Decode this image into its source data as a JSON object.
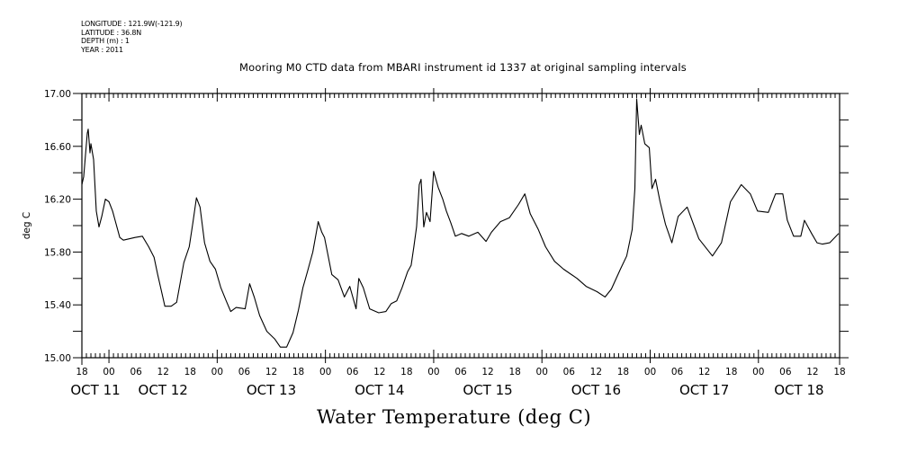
{
  "header": {
    "meta_lines": [
      "LONGITUDE : 121.9W(-121.9)",
      "LATITUDE : 36.8N",
      "DEPTH (m) : 1",
      "YEAR : 2011"
    ]
  },
  "chart_data": {
    "type": "line",
    "title": "Mooring M0 CTD data from MBARI instrument id 1337 at original sampling intervals",
    "caption": "Water Temperature (deg C)",
    "ylabel": "deg C",
    "xlabel": "",
    "x_units": "hours since OCT 11 18:00 (2011)",
    "xlim": [
      0,
      168
    ],
    "ylim": [
      15.0,
      17.0
    ],
    "grid": false,
    "y_ticks": [
      15.0,
      15.2,
      15.4,
      15.6,
      15.8,
      16.0,
      16.2,
      16.4,
      16.6,
      16.8,
      17.0
    ],
    "y_tick_labels": [
      "15.00",
      "",
      "15.40",
      "",
      "15.80",
      "",
      "16.20",
      "",
      "16.60",
      "",
      "17.00"
    ],
    "x_hour_labels": [
      "18",
      "00",
      "06",
      "12",
      "18",
      "00",
      "06",
      "12",
      "18",
      "00",
      "06",
      "12",
      "18",
      "00",
      "06",
      "12",
      "18",
      "00",
      "06",
      "12",
      "18",
      "00",
      "06",
      "12",
      "18",
      "00",
      "06",
      "12",
      "18"
    ],
    "day_labels": [
      {
        "label": "OCT 11",
        "center_hour": 3
      },
      {
        "label": "OCT 12",
        "center_hour": 18
      },
      {
        "label": "OCT 13",
        "center_hour": 42
      },
      {
        "label": "OCT 14",
        "center_hour": 66
      },
      {
        "label": "OCT 15",
        "center_hour": 90
      },
      {
        "label": "OCT 16",
        "center_hour": 114
      },
      {
        "label": "OCT 17",
        "center_hour": 138
      },
      {
        "label": "OCT 18",
        "center_hour": 159
      }
    ],
    "series": [
      {
        "name": "Water Temperature",
        "color": "#000000",
        "x": [
          0,
          0.4,
          1.2,
          1.4,
          1.8,
          2,
          2.6,
          3.2,
          3.8,
          4.4,
          5.2,
          6,
          6.8,
          7.6,
          8.4,
          9.2,
          11.8,
          13.4,
          14.8,
          16,
          16.8,
          17.8,
          18.4,
          19.8,
          21,
          22.6,
          23.8,
          24.6,
          25.4,
          26.2,
          27.2,
          28.4,
          29.6,
          30.8,
          32,
          33,
          34.2,
          36.2,
          37.2,
          38.2,
          39.4,
          41,
          42.8,
          44,
          45.4,
          46.8,
          48,
          49,
          50,
          51.2,
          52.2,
          52.4,
          53.2,
          53.8,
          55.4,
          56.8,
          58.2,
          59.4,
          60.8,
          61.4,
          62.4,
          63.8,
          65.8,
          67.4,
          68.6,
          69.8,
          71,
          72.2,
          73,
          73.6,
          74.2,
          74.8,
          75.2,
          75.8,
          76.4,
          77.2,
          78,
          79,
          80,
          80.8,
          81.8,
          82.8,
          84.2,
          85.8,
          87.8,
          89.6,
          90.8,
          92.8,
          94.8,
          96.8,
          98.2,
          99.4,
          101.2,
          102.8,
          104.8,
          106.8,
          109.8,
          111.8,
          114.2,
          116,
          117.4,
          119.4,
          120.8,
          122,
          122.6,
          123,
          123.6,
          124,
          124.8,
          125.8,
          126.4,
          127.2,
          128.2,
          129.4,
          130.8,
          132.2,
          134.2,
          136.8,
          139.8,
          141.8,
          143.8,
          146.2,
          148.2,
          149.8,
          152.2,
          153.8,
          155.4,
          156.4,
          157.8,
          159.4,
          160.2,
          161.8,
          163,
          164.2,
          165.8,
          167.8
        ],
        "y": [
          16.31,
          16.37,
          16.7,
          16.73,
          16.55,
          16.62,
          16.5,
          16.11,
          15.99,
          16.07,
          16.2,
          16.18,
          16.11,
          16.01,
          15.91,
          15.89,
          15.91,
          15.92,
          15.84,
          15.76,
          15.63,
          15.48,
          15.39,
          15.39,
          15.42,
          15.72,
          15.84,
          16.02,
          16.21,
          16.14,
          15.87,
          15.73,
          15.67,
          15.53,
          15.43,
          15.35,
          15.38,
          15.37,
          15.56,
          15.46,
          15.32,
          15.2,
          15.14,
          15.08,
          15.08,
          15.19,
          15.36,
          15.53,
          15.65,
          15.8,
          15.99,
          16.03,
          15.95,
          15.91,
          15.63,
          15.59,
          15.46,
          15.54,
          15.37,
          15.6,
          15.53,
          15.37,
          15.34,
          15.35,
          15.41,
          15.43,
          15.53,
          15.65,
          15.7,
          15.84,
          15.99,
          16.31,
          16.35,
          15.99,
          16.1,
          16.03,
          16.41,
          16.29,
          16.2,
          16.11,
          16.02,
          15.92,
          15.94,
          15.92,
          15.95,
          15.88,
          15.95,
          16.03,
          16.06,
          16.16,
          16.24,
          16.09,
          15.97,
          15.84,
          15.73,
          15.67,
          15.6,
          15.54,
          15.5,
          15.46,
          15.52,
          15.67,
          15.77,
          15.97,
          16.28,
          16.96,
          16.69,
          16.76,
          16.62,
          16.59,
          16.28,
          16.35,
          16.18,
          16.01,
          15.87,
          16.07,
          16.14,
          15.9,
          15.77,
          15.87,
          16.18,
          16.31,
          16.24,
          16.11,
          16.1,
          16.24,
          16.24,
          16.04,
          15.92,
          15.92,
          16.04,
          15.94,
          15.87,
          15.86,
          15.87,
          15.94
        ]
      }
    ]
  }
}
